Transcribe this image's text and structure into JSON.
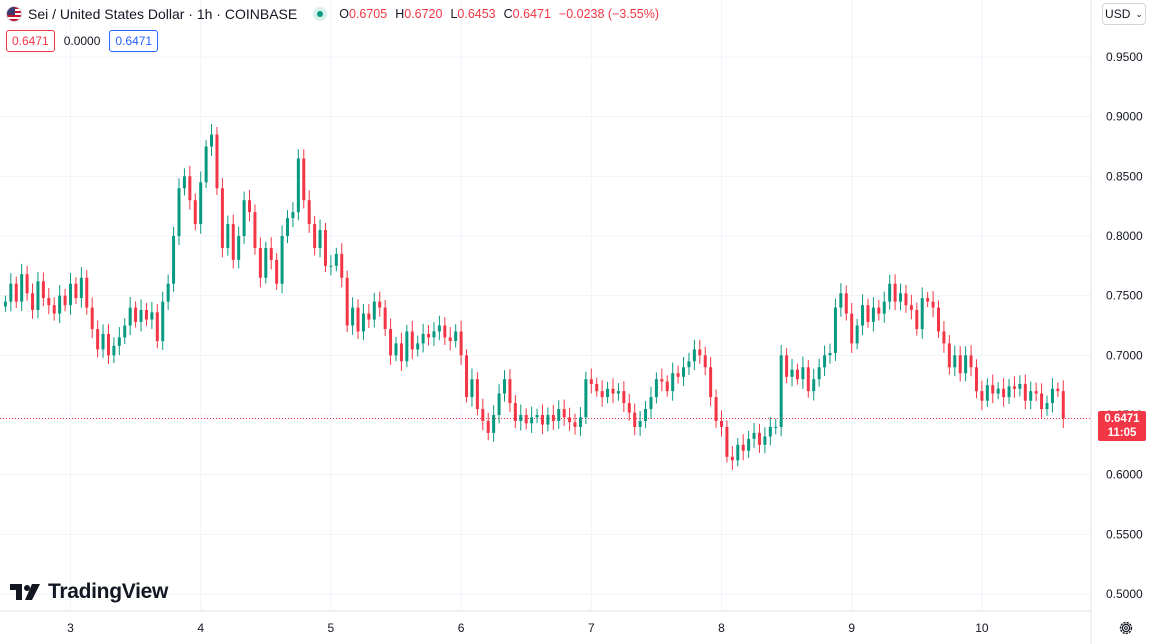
{
  "header": {
    "symbol_title": "Sei / United States Dollar · 1h · COINBASE",
    "ohlc": [
      {
        "k": "O",
        "v": "0.6705"
      },
      {
        "k": "H",
        "v": "0.6720"
      },
      {
        "k": "L",
        "v": "0.6453"
      },
      {
        "k": "C",
        "v": "0.6471"
      }
    ],
    "change": "−0.0238 (−3.55%)"
  },
  "price_row": {
    "sell": "0.6471",
    "spread": "0.0000",
    "buy": "0.6471"
  },
  "currency": {
    "label": "USD"
  },
  "brand": {
    "name": "TradingView"
  },
  "last_price": {
    "value": "0.6471",
    "countdown": "11:05"
  },
  "colors": {
    "up": "#089981",
    "down": "#f23645",
    "grid": "#f0f3fa",
    "axis_text": "#131722"
  },
  "icons": [
    "us-flag-icon",
    "market-open-dot-icon",
    "chevron-down-icon",
    "tradingview-logo-icon",
    "gear-icon"
  ],
  "chart_data": {
    "type": "candlestick",
    "title": "Sei / United States Dollar · 1h · COINBASE",
    "x_ticks": [
      {
        "label": "3",
        "bar": 12
      },
      {
        "label": "4",
        "bar": 36
      },
      {
        "label": "5",
        "bar": 60
      },
      {
        "label": "6",
        "bar": 84
      },
      {
        "label": "7",
        "bar": 108
      },
      {
        "label": "8",
        "bar": 132
      },
      {
        "label": "9",
        "bar": 156
      },
      {
        "label": "10",
        "bar": 180
      }
    ],
    "y_ticks": [
      "0.9500",
      "0.9000",
      "0.8500",
      "0.8000",
      "0.7500",
      "0.7000",
      "0.6500",
      "0.6000",
      "0.5500",
      "0.5000"
    ],
    "ylim": [
      0.4875,
      0.9875
    ],
    "last_price": 0.6471,
    "closes": [
      0.745,
      0.76,
      0.745,
      0.768,
      0.752,
      0.738,
      0.762,
      0.748,
      0.742,
      0.735,
      0.75,
      0.742,
      0.76,
      0.748,
      0.765,
      0.74,
      0.722,
      0.705,
      0.718,
      0.7,
      0.708,
      0.715,
      0.725,
      0.74,
      0.728,
      0.738,
      0.73,
      0.736,
      0.712,
      0.745,
      0.76,
      0.8,
      0.84,
      0.85,
      0.83,
      0.81,
      0.845,
      0.875,
      0.885,
      0.84,
      0.79,
      0.81,
      0.78,
      0.8,
      0.83,
      0.82,
      0.79,
      0.765,
      0.79,
      0.78,
      0.76,
      0.8,
      0.815,
      0.82,
      0.865,
      0.83,
      0.81,
      0.79,
      0.805,
      0.775,
      0.775,
      0.785,
      0.765,
      0.725,
      0.74,
      0.72,
      0.735,
      0.73,
      0.745,
      0.74,
      0.722,
      0.7,
      0.71,
      0.695,
      0.72,
      0.705,
      0.71,
      0.718,
      0.715,
      0.72,
      0.725,
      0.715,
      0.712,
      0.72,
      0.7,
      0.665,
      0.68,
      0.655,
      0.645,
      0.635,
      0.65,
      0.668,
      0.68,
      0.66,
      0.645,
      0.65,
      0.643,
      0.648,
      0.65,
      0.642,
      0.65,
      0.645,
      0.655,
      0.648,
      0.644,
      0.64,
      0.648,
      0.68,
      0.676,
      0.67,
      0.665,
      0.672,
      0.668,
      0.67,
      0.66,
      0.652,
      0.64,
      0.645,
      0.655,
      0.665,
      0.68,
      0.678,
      0.67,
      0.685,
      0.682,
      0.69,
      0.695,
      0.705,
      0.7,
      0.69,
      0.665,
      0.645,
      0.64,
      0.615,
      0.612,
      0.625,
      0.62,
      0.63,
      0.635,
      0.625,
      0.632,
      0.64,
      0.64,
      0.7,
      0.682,
      0.688,
      0.68,
      0.69,
      0.67,
      0.68,
      0.69,
      0.7,
      0.702,
      0.74,
      0.752,
      0.735,
      0.71,
      0.725,
      0.742,
      0.728,
      0.74,
      0.735,
      0.745,
      0.76,
      0.745,
      0.752,
      0.742,
      0.738,
      0.722,
      0.748,
      0.745,
      0.74,
      0.72,
      0.71,
      0.69,
      0.7,
      0.685,
      0.7,
      0.69,
      0.67,
      0.662,
      0.675,
      0.668,
      0.672,
      0.665,
      0.674,
      0.672,
      0.676,
      0.662,
      0.67,
      0.668,
      0.655,
      0.66,
      0.672,
      0.67,
      0.6471
    ]
  }
}
